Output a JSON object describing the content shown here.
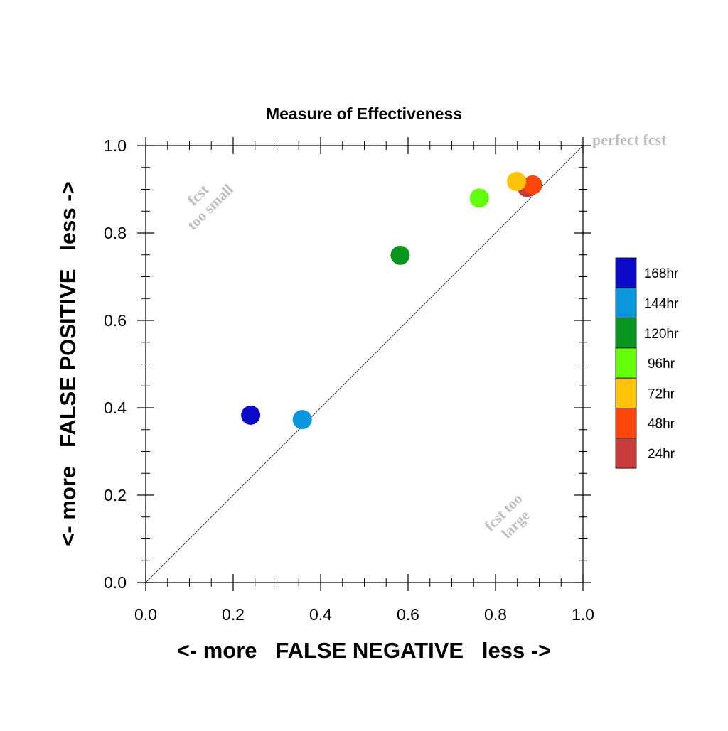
{
  "chart_data": {
    "type": "scatter",
    "title": "Measure of Effectiveness",
    "xlabel": "<- more   FALSE NEGATIVE   less ->",
    "ylabel": "<- more   FALSE POSITIVE   less ->",
    "xlim": [
      0.0,
      1.0
    ],
    "ylim": [
      0.0,
      1.0
    ],
    "xticks": [
      "0.0",
      "0.2",
      "0.4",
      "0.6",
      "0.8",
      "1.0"
    ],
    "yticks": [
      "0.0",
      "0.2",
      "0.4",
      "0.6",
      "0.8",
      "1.0"
    ],
    "grid": false,
    "reference_line": "diagonal y = x",
    "annotations": {
      "perfect": "perfect fcst",
      "small_line1": "fcst",
      "small_line2": "too small",
      "large_line1": "fcst too",
      "large_line2": "large"
    },
    "annotation_color": "#bebebe",
    "legend_position": "right",
    "series": [
      {
        "name": "168hr",
        "color": "#0a0ac8",
        "x": 0.24,
        "y": 0.383
      },
      {
        "name": "144hr",
        "color": "#0a96dc",
        "x": 0.358,
        "y": 0.373
      },
      {
        "name": "120hr",
        "color": "#0a961e",
        "x": 0.582,
        "y": 0.749
      },
      {
        "name": "96hr",
        "color": "#64ff0a",
        "x": 0.763,
        "y": 0.88
      },
      {
        "name": "72hr",
        "color": "#ffc30a",
        "x": 0.848,
        "y": 0.918
      },
      {
        "name": "48hr",
        "color": "#ff460a",
        "x": 0.885,
        "y": 0.91
      },
      {
        "name": "24hr",
        "color": "#c83c3c",
        "x": 0.872,
        "y": 0.904
      }
    ],
    "plot_order": [
      "24hr",
      "48hr",
      "72hr",
      "96hr",
      "120hr",
      "144hr",
      "168hr"
    ]
  }
}
